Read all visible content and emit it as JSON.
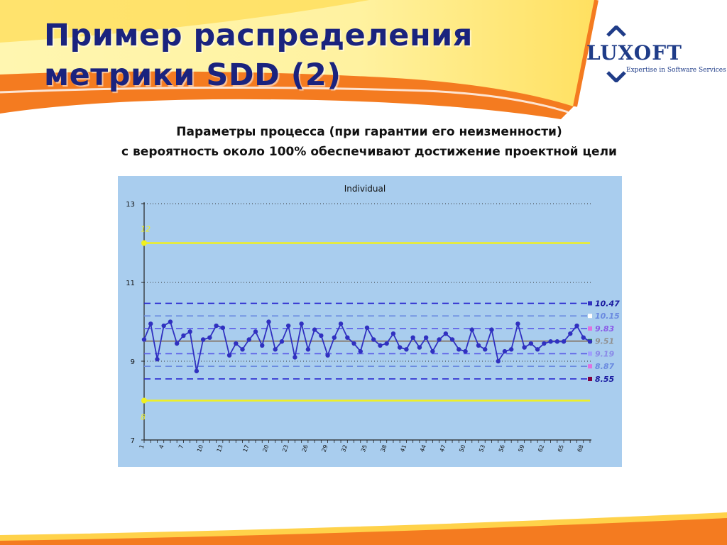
{
  "slide": {
    "title_line1": "Пример распределения",
    "title_line2": "метрики SDD (2)",
    "subtitle_line1": "Параметры процесса (при гарантии его неизменности)",
    "subtitle_line2": "с вероятность около 100% обеспечивают достижение проектной цели"
  },
  "logo": {
    "word": "LUXOFT",
    "tagline": "Expertise in Software Services"
  },
  "colors": {
    "banner_orange": "#f47b20",
    "banner_yellow": "#ffd200",
    "title_blue": "#1a237e",
    "plot_bg": "#a9cdee",
    "series": "#3030c0",
    "spec_limit": "#f0f020"
  },
  "chart_data": {
    "type": "line",
    "title": "Individual",
    "x": [
      1,
      2,
      3,
      4,
      5,
      6,
      7,
      8,
      9,
      10,
      11,
      12,
      13,
      14,
      15,
      16,
      17,
      18,
      19,
      20,
      21,
      22,
      23,
      24,
      25,
      26,
      27,
      28,
      29,
      30,
      31,
      32,
      33,
      34,
      35,
      36,
      37,
      38,
      39,
      40,
      41,
      42,
      43,
      44,
      45,
      46,
      47,
      48,
      49,
      50,
      51,
      52,
      53,
      54,
      55,
      56,
      57,
      58,
      59,
      60,
      61,
      62,
      63,
      64,
      65,
      66,
      67,
      68,
      69
    ],
    "x_tick_labels": [
      "1",
      "4",
      "7",
      "10",
      "13",
      "17",
      "20",
      "23",
      "26",
      "29",
      "32",
      "35",
      "38",
      "41",
      "44",
      "47",
      "50",
      "53",
      "56",
      "59",
      "62",
      "65",
      "68"
    ],
    "values": [
      9.55,
      9.95,
      9.05,
      9.9,
      10.0,
      9.45,
      9.65,
      9.75,
      8.75,
      9.55,
      9.6,
      9.9,
      9.85,
      9.15,
      9.45,
      9.3,
      9.55,
      9.75,
      9.4,
      10.0,
      9.3,
      9.5,
      9.9,
      9.1,
      9.95,
      9.3,
      9.8,
      9.65,
      9.15,
      9.6,
      9.95,
      9.6,
      9.45,
      9.25,
      9.85,
      9.55,
      9.4,
      9.45,
      9.7,
      9.35,
      9.3,
      9.6,
      9.35,
      9.6,
      9.25,
      9.55,
      9.7,
      9.55,
      9.3,
      9.25,
      9.8,
      9.4,
      9.3,
      9.8,
      9.0,
      9.25,
      9.3,
      9.95,
      9.35,
      9.45,
      9.3,
      9.45,
      9.5,
      9.5,
      9.5,
      9.7,
      9.9,
      9.6,
      9.5
    ],
    "y_tick_labels": [
      "13",
      "11",
      "9",
      "7"
    ],
    "ylim": [
      7,
      13
    ],
    "spec_limits": [
      {
        "label": "12",
        "value": 12,
        "color": "#f0f020"
      },
      {
        "label": "8",
        "value": 8,
        "color": "#f0f020"
      }
    ],
    "reference_lines": [
      {
        "label": "10.47",
        "value": 10.47,
        "color": "#2a2ad0",
        "label_color": "#1a1aa0",
        "marker_color": "#3030c0",
        "style": "dash"
      },
      {
        "label": "10.15",
        "value": 10.15,
        "color": "#6a8ae0",
        "label_color": "#6a8ae0",
        "marker_color": "#ffffff",
        "style": "dash"
      },
      {
        "label": "9.83",
        "value": 9.83,
        "color": "#5a5ae8",
        "label_color": "#8a5ae8",
        "marker_color": "#e070e0",
        "style": "dash"
      },
      {
        "label": "9.51",
        "value": 9.51,
        "color": "#909090",
        "label_color": "#909090",
        "marker_color": "#20a020",
        "style": "solid"
      },
      {
        "label": "9.19",
        "value": 9.19,
        "color": "#5a5ae8",
        "label_color": "#8a8ae8",
        "marker_color": "#a0a0ff",
        "style": "dash"
      },
      {
        "label": "8.87",
        "value": 8.87,
        "color": "#6a8ae0",
        "label_color": "#6a8ae0",
        "marker_color": "#e070e0",
        "style": "dash"
      },
      {
        "label": "8.55",
        "value": 8.55,
        "color": "#2a2ad0",
        "label_color": "#1a1aa0",
        "marker_color": "#800040",
        "style": "dash"
      }
    ]
  }
}
